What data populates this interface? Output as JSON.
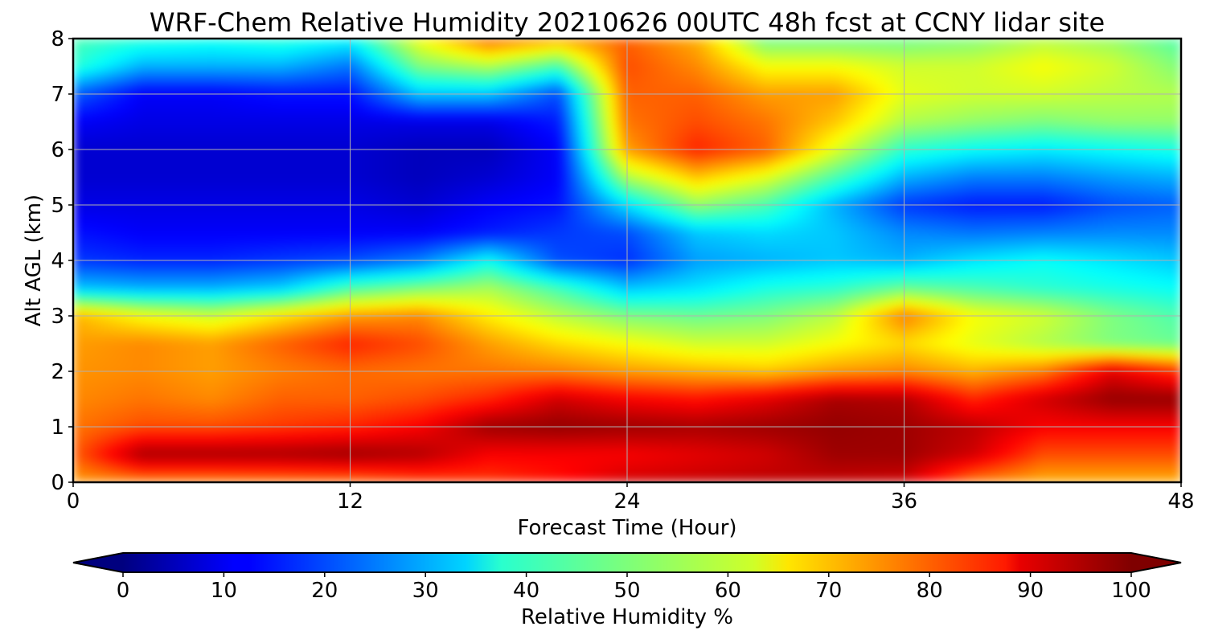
{
  "chart_data": {
    "type": "heatmap",
    "title": "WRF-Chem Relative Humidity 20210626 00UTC 48h fcst at CCNY lidar site",
    "xlabel": "Forecast Time (Hour)",
    "ylabel": "Alt AGL (km)",
    "xlim": [
      0,
      48
    ],
    "ylim": [
      0,
      8
    ],
    "x_ticks": [
      "0",
      "12",
      "24",
      "36",
      "48"
    ],
    "y_ticks": [
      "0",
      "1",
      "2",
      "3",
      "4",
      "5",
      "6",
      "7",
      "8"
    ],
    "grid": true,
    "colormap": "jet",
    "colorbar": {
      "label": "Relative Humidity %",
      "range": [
        0,
        100
      ],
      "ticks": [
        "0",
        "10",
        "20",
        "30",
        "40",
        "50",
        "60",
        "70",
        "80",
        "90",
        "100"
      ],
      "extend": "both",
      "orientation": "horizontal"
    },
    "x": [
      0,
      3,
      6,
      9,
      12,
      15,
      18,
      21,
      24,
      27,
      30,
      33,
      36,
      39,
      42,
      45,
      48
    ],
    "y": [
      0,
      0.5,
      1,
      1.5,
      2,
      2.5,
      3,
      3.5,
      4,
      4.5,
      5,
      5.5,
      6,
      6.5,
      7,
      7.5,
      8
    ],
    "z": [
      [
        72,
        74,
        74,
        75,
        76,
        80,
        82,
        86,
        92,
        93,
        94,
        93,
        92,
        75,
        70,
        70,
        70
      ],
      [
        78,
        96,
        96,
        96,
        97,
        95,
        88,
        88,
        88,
        90,
        92,
        97,
        97,
        92,
        80,
        80,
        80
      ],
      [
        76,
        80,
        80,
        82,
        84,
        88,
        97,
        98,
        97,
        96,
        97,
        98,
        97,
        94,
        88,
        88,
        88
      ],
      [
        74,
        76,
        74,
        78,
        78,
        80,
        84,
        92,
        88,
        86,
        90,
        96,
        95,
        84,
        92,
        98,
        98
      ],
      [
        73,
        74,
        72,
        75,
        77,
        76,
        76,
        75,
        72,
        70,
        68,
        72,
        74,
        70,
        75,
        90,
        82
      ],
      [
        72,
        74,
        72,
        78,
        84,
        80,
        72,
        66,
        62,
        58,
        58,
        62,
        66,
        60,
        55,
        50,
        48
      ],
      [
        70,
        62,
        58,
        65,
        72,
        74,
        64,
        56,
        50,
        48,
        50,
        56,
        75,
        62,
        58,
        50,
        45
      ],
      [
        32,
        30,
        30,
        33,
        45,
        50,
        54,
        44,
        32,
        35,
        40,
        42,
        48,
        45,
        42,
        40,
        38
      ],
      [
        18,
        16,
        16,
        18,
        20,
        25,
        38,
        20,
        17,
        28,
        30,
        32,
        30,
        35,
        38,
        35,
        32
      ],
      [
        14,
        12,
        12,
        12,
        12,
        12,
        15,
        18,
        20,
        32,
        34,
        32,
        26,
        24,
        25,
        26,
        26
      ],
      [
        10,
        10,
        10,
        10,
        10,
        8,
        12,
        14,
        35,
        52,
        45,
        30,
        18,
        15,
        15,
        20,
        22
      ],
      [
        8,
        8,
        8,
        8,
        8,
        6,
        8,
        12,
        55,
        68,
        60,
        45,
        30,
        25,
        25,
        28,
        30
      ],
      [
        8,
        8,
        8,
        8,
        8,
        6,
        6,
        12,
        72,
        84,
        78,
        60,
        42,
        38,
        36,
        38,
        40
      ],
      [
        12,
        10,
        10,
        10,
        10,
        10,
        10,
        15,
        76,
        80,
        76,
        68,
        55,
        52,
        50,
        52,
        52
      ],
      [
        22,
        12,
        12,
        14,
        14,
        32,
        32,
        20,
        78,
        78,
        72,
        72,
        60,
        58,
        58,
        56,
        55
      ],
      [
        42,
        30,
        30,
        30,
        24,
        50,
        55,
        45,
        80,
        74,
        62,
        62,
        58,
        58,
        62,
        58,
        50
      ],
      [
        45,
        42,
        40,
        42,
        38,
        62,
        78,
        72,
        78,
        70,
        48,
        48,
        48,
        50,
        55,
        52,
        45
      ]
    ]
  }
}
